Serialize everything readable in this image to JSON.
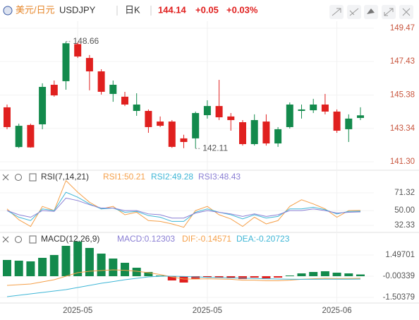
{
  "header": {
    "pair": "美元/日元",
    "symbol": "USDJPY",
    "period": "日K",
    "price": "144.14",
    "change": "+0.05",
    "change_pct": "+0.03%"
  },
  "chart_data": [
    {
      "type": "candlestick",
      "colors": {
        "up": "#138a4c",
        "down": "#e0201f"
      },
      "categories": [
        null,
        null,
        null,
        null,
        null,
        null,
        "2025-05",
        null,
        null,
        null,
        null,
        null,
        null,
        null,
        null,
        null,
        null,
        "2025-05",
        null,
        null,
        null,
        null,
        null,
        null,
        null,
        null,
        null,
        null,
        "2025-06",
        null,
        null
      ],
      "open": [
        144.63,
        142.2,
        143.55,
        143.59,
        146.01,
        146.23,
        148.5,
        147.65,
        146.83,
        145.45,
        145.28,
        144.41,
        144.41,
        143.76,
        143.76,
        142.73,
        142.73,
        144.15,
        144.71,
        144.07,
        143.72,
        142.38,
        143.76,
        142.42,
        143.42,
        144.41,
        144.45,
        144.8,
        144.37,
        143.29,
        143.98
      ],
      "high": [
        144.8,
        143.63,
        143.63,
        146.1,
        146.27,
        148.66,
        148.6,
        147.83,
        146.96,
        146.27,
        145.58,
        145.49,
        144.5,
        144.07,
        143.85,
        142.95,
        144.37,
        145.06,
        146.31,
        144.28,
        143.85,
        144.2,
        144.2,
        143.42,
        144.93,
        144.8,
        145.15,
        145.45,
        144.5,
        144.2,
        144.63
      ],
      "low": [
        143.29,
        142.14,
        142.16,
        143.29,
        145.28,
        145.71,
        147.65,
        145.67,
        145.41,
        144.97,
        144.71,
        144.11,
        143.07,
        143.42,
        142.15,
        142.13,
        142.11,
        143.94,
        143.85,
        143.2,
        142.29,
        142.29,
        142.29,
        142.21,
        143.33,
        143.94,
        144.28,
        144.2,
        143.07,
        142.51,
        143.85
      ],
      "close": [
        143.42,
        143.5,
        142.18,
        145.88,
        145.36,
        148.55,
        147.74,
        146.83,
        145.58,
        146.01,
        144.8,
        144.8,
        143.42,
        143.5,
        142.21,
        142.51,
        144.28,
        144.71,
        144.02,
        143.85,
        142.38,
        143.85,
        142.42,
        143.29,
        144.8,
        144.5,
        144.8,
        144.37,
        143.2,
        143.94,
        144.14
      ],
      "ylim": [
        140.91,
        149.9
      ],
      "yticks": [
        149.47,
        147.43,
        145.38,
        143.34,
        {
          "value": 141.3,
          "label": "141.30"
        }
      ],
      "annotations": [
        {
          "value": 148.66,
          "label": "148.66"
        },
        {
          "value": 142.11,
          "label": "142.11"
        }
      ]
    },
    {
      "type": "line",
      "title": "RSI(7,14,21)",
      "ylim": [
        25.5,
        95
      ],
      "yticks": [
        71.32,
        {
          "value": 50,
          "label": "50.00"
        },
        32.33
      ],
      "series": [
        {
          "name": "RSI1:50.21",
          "color": "#f5a04a",
          "values": [
            52,
            39,
            31,
            55,
            50,
            86,
            72,
            60,
            52,
            55,
            45,
            48,
            38,
            37,
            34,
            30,
            50,
            55,
            45,
            40,
            31,
            42,
            34,
            38,
            55,
            63,
            58,
            52,
            42,
            50,
            50.21
          ]
        },
        {
          "name": "RSI2:49.28",
          "color": "#3fb6d6",
          "values": [
            50,
            42,
            38,
            52,
            50,
            72,
            66,
            58,
            52,
            53,
            48,
            49,
            44,
            42,
            37,
            37,
            48,
            52,
            48,
            45,
            40,
            45,
            41,
            43,
            52,
            52,
            54,
            51,
            46,
            49,
            49.28
          ]
        },
        {
          "name": "RSI3:48.43",
          "color": "#8a7fd4",
          "values": [
            50,
            45,
            42,
            50,
            49,
            65,
            62,
            57,
            53,
            53,
            50,
            50,
            46,
            45,
            41,
            41,
            47,
            50,
            48,
            46,
            43,
            46,
            43,
            45,
            50,
            50,
            52,
            50,
            47,
            48,
            48.43
          ]
        }
      ]
    },
    {
      "type": "macd",
      "title": "MACD(12,26,9)",
      "ylim": [
        -1.85,
        3.05
      ],
      "yticks": [
        1.49701,
        -0.00339,
        -1.50379
      ],
      "series": [
        {
          "name": "MACD:0.12303",
          "color": "#8a7fd4",
          "up_color": "#138a4c",
          "down_color": "#e0201f",
          "style": "bar",
          "values": [
            1.15,
            1.1,
            1.05,
            1.3,
            1.5,
            2.15,
            2.45,
            2.0,
            1.6,
            1.25,
            0.95,
            0.6,
            0.3,
            0.05,
            -0.3,
            -0.45,
            -0.2,
            -0.1,
            -0.12,
            -0.15,
            -0.2,
            -0.1,
            -0.15,
            -0.1,
            0.05,
            0.2,
            0.3,
            0.35,
            0.25,
            0.2,
            0.12303
          ]
        },
        {
          "name": "DIF:-0.14571",
          "color": "#f5a04a",
          "style": "line",
          "values": [
            -0.65,
            -0.6,
            -0.55,
            -0.4,
            -0.25,
            0.0,
            0.25,
            0.35,
            0.4,
            0.45,
            0.42,
            0.35,
            0.25,
            0.12,
            -0.05,
            -0.2,
            -0.2,
            -0.18,
            -0.2,
            -0.22,
            -0.28,
            -0.28,
            -0.32,
            -0.32,
            -0.28,
            -0.22,
            -0.18,
            -0.15,
            -0.17,
            -0.16,
            -0.14571
          ]
        },
        {
          "name": "DEA:-0.20723",
          "color": "#3fb6d6",
          "style": "line",
          "values": [
            -1.45,
            -1.35,
            -1.25,
            -1.15,
            -1.05,
            -0.95,
            -0.8,
            -0.65,
            -0.5,
            -0.38,
            -0.25,
            -0.15,
            -0.05,
            0.0,
            0.0,
            -0.02,
            -0.05,
            -0.08,
            -0.1,
            -0.12,
            -0.14,
            -0.16,
            -0.18,
            -0.2,
            -0.21,
            -0.22,
            -0.22,
            -0.21,
            -0.21,
            -0.21,
            -0.20723
          ]
        }
      ]
    }
  ]
}
